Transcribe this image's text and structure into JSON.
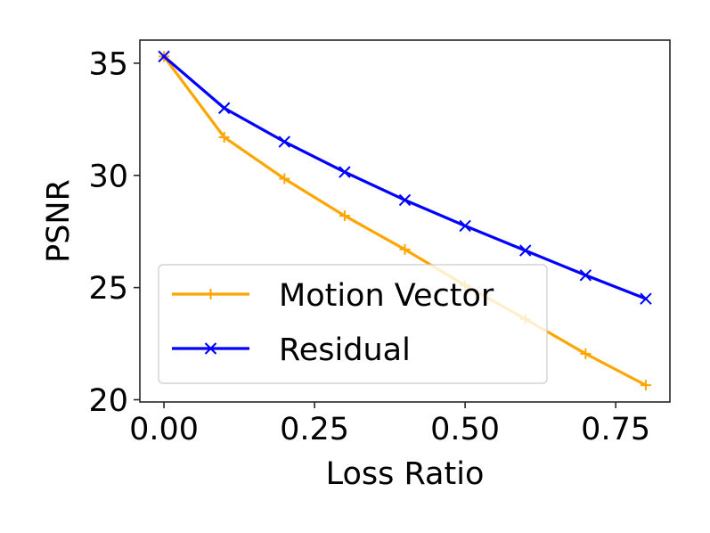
{
  "chart_data": {
    "type": "line",
    "title": "",
    "xlabel": "Loss Ratio",
    "ylabel": "PSNR",
    "xlim": [
      -0.04,
      0.84
    ],
    "ylim": [
      19.9,
      36.03
    ],
    "xticks": [
      0.0,
      0.25,
      0.5,
      0.75
    ],
    "xtick_labels": [
      "0.00",
      "0.25",
      "0.50",
      "0.75"
    ],
    "yticks": [
      20,
      25,
      30,
      35
    ],
    "ytick_labels": [
      "20",
      "25",
      "30",
      "35"
    ],
    "grid": false,
    "legend_position": "lower-left",
    "x": [
      0.0,
      0.1,
      0.2,
      0.3,
      0.4,
      0.5,
      0.6,
      0.7,
      0.8
    ],
    "series": [
      {
        "name": "Motion Vector",
        "color": "#ffa500",
        "marker": "plus",
        "values": [
          35.3,
          31.7,
          29.85,
          28.2,
          26.7,
          25.1,
          23.6,
          22.05,
          20.65
        ]
      },
      {
        "name": "Residual",
        "color": "#0000ff",
        "marker": "x",
        "values": [
          35.3,
          33.0,
          31.5,
          30.15,
          28.9,
          27.75,
          26.65,
          25.55,
          24.5
        ]
      }
    ]
  }
}
